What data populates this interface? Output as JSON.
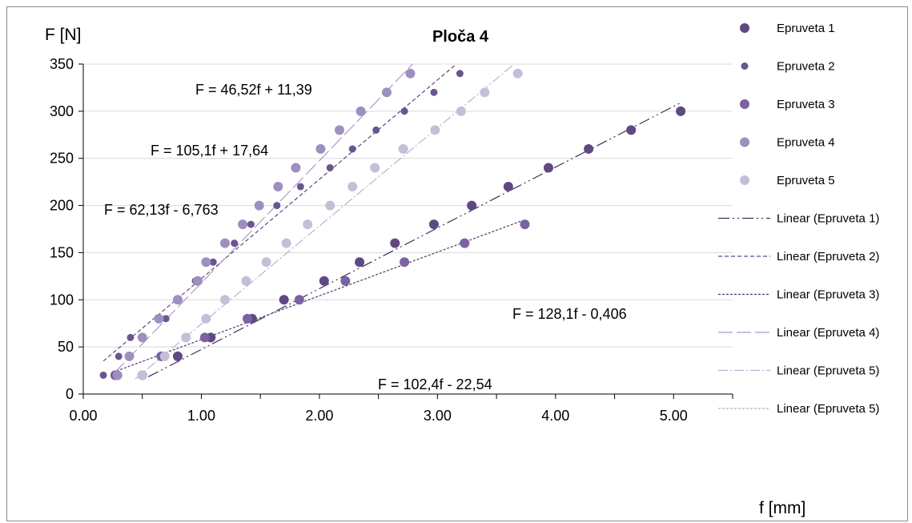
{
  "chart_data": {
    "type": "scatter",
    "title": "Ploča 4",
    "xlabel": "f [mm]",
    "ylabel": "F [N]",
    "xlim": [
      0,
      5.5
    ],
    "ylim": [
      0,
      350
    ],
    "x_ticks": [
      "0.00",
      "1.00",
      "2.00",
      "3.00",
      "4.00",
      "5.00"
    ],
    "x_tick_values": [
      0,
      1,
      2,
      3,
      4,
      5
    ],
    "y_ticks": [
      "0",
      "50",
      "100",
      "150",
      "200",
      "250",
      "300",
      "350"
    ],
    "y_tick_values": [
      0,
      50,
      100,
      150,
      200,
      250,
      300,
      350
    ],
    "grid": "horizontal",
    "legend_position": "right",
    "series": [
      {
        "name": "Epruveta 1",
        "color": "#5e4a80",
        "marker_size": 6,
        "x": [
          0.5,
          0.8,
          1.08,
          1.43,
          1.7,
          2.04,
          2.34,
          2.64,
          2.97,
          3.29,
          3.6,
          3.94,
          4.28,
          4.64,
          5.06
        ],
        "y": [
          20,
          40,
          60,
          80,
          100,
          120,
          140,
          160,
          180,
          200,
          220,
          240,
          260,
          280,
          300
        ]
      },
      {
        "name": "Epruveta 2",
        "color": "#6a5590",
        "marker_size": 4.5,
        "x": [
          0.17,
          0.3,
          0.4,
          0.7,
          0.95,
          1.1,
          1.28,
          1.42,
          1.64,
          1.84,
          2.09,
          2.28,
          2.48,
          2.72,
          2.97,
          3.19
        ],
        "y": [
          20,
          40,
          60,
          80,
          120,
          140,
          160,
          180,
          200,
          220,
          240,
          260,
          280,
          300,
          320,
          340
        ]
      },
      {
        "name": "Epruveta 3",
        "color": "#7a62a3",
        "marker_size": 6,
        "x": [
          0.27,
          0.66,
          1.03,
          1.39,
          1.83,
          2.22,
          2.72,
          3.23,
          3.74
        ],
        "y": [
          20,
          40,
          60,
          80,
          100,
          120,
          140,
          160,
          180
        ]
      },
      {
        "name": "Epruveta 4",
        "color": "#9e8fbe",
        "marker_size": 6,
        "x": [
          0.29,
          0.39,
          0.5,
          0.64,
          0.8,
          0.97,
          1.04,
          1.2,
          1.35,
          1.49,
          1.65,
          1.8,
          2.01,
          2.17,
          2.35,
          2.57,
          2.77
        ],
        "y": [
          20,
          40,
          60,
          80,
          100,
          120,
          140,
          160,
          180,
          200,
          220,
          240,
          260,
          280,
          300,
          320,
          340
        ]
      },
      {
        "name": "Epruveta 5",
        "color": "#c4bfd6",
        "marker_size": 6,
        "x": [
          0.5,
          0.69,
          0.87,
          1.04,
          1.2,
          1.38,
          1.55,
          1.72,
          1.9,
          2.09,
          2.28,
          2.47,
          2.71,
          2.98,
          3.2,
          3.4,
          3.68
        ],
        "y": [
          20,
          40,
          60,
          80,
          100,
          120,
          140,
          160,
          180,
          200,
          220,
          240,
          260,
          280,
          300,
          320,
          340
        ]
      }
    ],
    "trendlines": [
      {
        "name": "Linear (Epruveta 1)",
        "color": "#3d3156",
        "dash": "14,4,2,4,2,4",
        "width": 1.2,
        "x": [
          0.55,
          5.06
        ],
        "y": [
          18.3,
          309
        ]
      },
      {
        "name": "Linear (Epruveta 2)",
        "color": "#5e4a80",
        "dash": "5,3",
        "width": 1.2,
        "x": [
          0.17,
          3.16
        ],
        "y": [
          35,
          350
        ]
      },
      {
        "name": "Linear (Epruveta 3)",
        "color": "#4b3d6a",
        "dash": "3,2",
        "width": 1.2,
        "x": [
          0.25,
          3.72
        ],
        "y": [
          23,
          184
        ]
      },
      {
        "name": "Linear (Epruveta 4)",
        "color": "#a89cc8",
        "dash": "18,5",
        "width": 1.2,
        "x": [
          0.26,
          2.79
        ],
        "y": [
          22,
          350
        ]
      },
      {
        "name": "Linear (Epruveta 5)",
        "color": "#bab3d0",
        "dash": "12,3,2,3",
        "width": 1.2,
        "x": [
          0.44,
          3.65
        ],
        "y": [
          16,
          350
        ]
      },
      {
        "name": "Linear (Epruveta 5)",
        "color": "#b6aed0",
        "dash": "3,2",
        "width": 1.2,
        "x": [],
        "y": []
      }
    ],
    "annotations": [
      {
        "text": "F = 46,52f + 11,39",
        "anchor": "upper-left"
      },
      {
        "text": "F = 105,1f + 17,64",
        "anchor": "upper-left"
      },
      {
        "text": "F = 62,13f - 6,763",
        "anchor": "middle-left"
      },
      {
        "text": "F = 128,1f - 0,406",
        "anchor": "middle-right"
      },
      {
        "text": "F = 102,4f - 22,54",
        "anchor": "lower-middle"
      }
    ]
  }
}
